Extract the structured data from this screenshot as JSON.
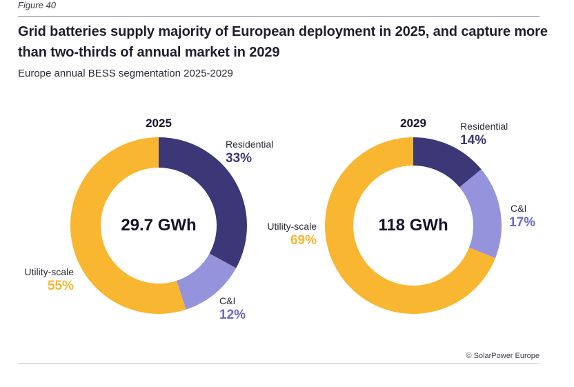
{
  "figure_label": "Figure 40",
  "title": "Grid batteries supply majority of European deployment in 2025, and capture more than two-thirds of annual market in 2029",
  "subtitle": "Europe annual BESS segmentation 2025-2029",
  "credit": "© SolarPower Europe",
  "colors": {
    "residential": "#3c3776",
    "ci": "#9493dc",
    "utility": "#f9b630",
    "residential_label": "#3c3776",
    "ci_label": "#6d69c8",
    "utility_label": "#f9b630"
  },
  "chart_data": [
    {
      "type": "pie",
      "variant": "donut",
      "title": "2025",
      "center_label": "29.7 GWh",
      "total": 29.7,
      "unit": "GWh",
      "categories": [
        "Residential",
        "C&I",
        "Utility-scale"
      ],
      "values": [
        33,
        12,
        55
      ],
      "labels": [
        "33%",
        "12%",
        "55%"
      ]
    },
    {
      "type": "pie",
      "variant": "donut",
      "title": "2029",
      "center_label": "118 GWh",
      "total": 118,
      "unit": "GWh",
      "categories": [
        "Residential",
        "C&I",
        "Utility-scale"
      ],
      "values": [
        14,
        17,
        69
      ],
      "labels": [
        "14%",
        "17%",
        "69%"
      ]
    }
  ]
}
